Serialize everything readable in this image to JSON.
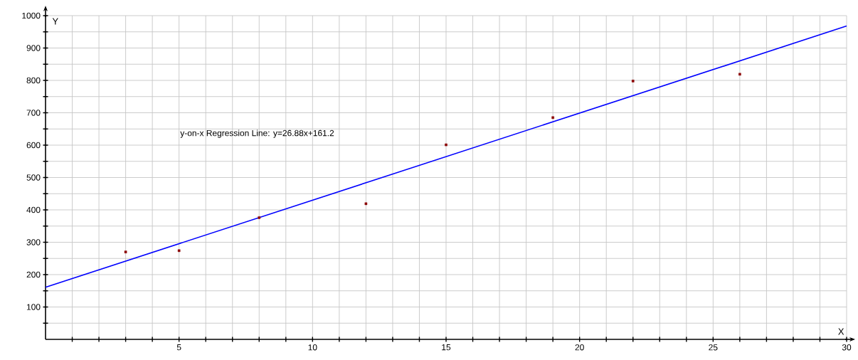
{
  "chart_data": {
    "type": "scatter",
    "xlabel": "X",
    "ylabel": "Y",
    "annotations": [
      "y-on-x Regression Line: y=26.88x+161.2"
    ],
    "xlim": [
      0,
      30
    ],
    "ylim": [
      0,
      1000
    ],
    "grid": true,
    "xticks": [
      {
        "value": 1,
        "label": null
      },
      {
        "value": 2,
        "label": null
      },
      {
        "value": 3,
        "label": null
      },
      {
        "value": 4,
        "label": null
      },
      5,
      {
        "value": 6,
        "label": null
      },
      {
        "value": 7,
        "label": null
      },
      {
        "value": 8,
        "label": null
      },
      {
        "value": 9,
        "label": null
      },
      10,
      {
        "value": 11,
        "label": null
      },
      {
        "value": 12,
        "label": null
      },
      {
        "value": 13,
        "label": null
      },
      {
        "value": 14,
        "label": null
      },
      15,
      {
        "value": 16,
        "label": null
      },
      {
        "value": 17,
        "label": null
      },
      {
        "value": 18,
        "label": null
      },
      {
        "value": 19,
        "label": null
      },
      20,
      {
        "value": 21,
        "label": null
      },
      {
        "value": 22,
        "label": null
      },
      {
        "value": 23,
        "label": null
      },
      {
        "value": 24,
        "label": null
      },
      25,
      {
        "value": 26,
        "label": null
      },
      {
        "value": 27,
        "label": null
      },
      {
        "value": 28,
        "label": null
      },
      {
        "value": 29,
        "label": null
      },
      30
    ],
    "yticks": [
      {
        "value": 50,
        "label": null
      },
      100,
      {
        "value": 150,
        "label": null
      },
      200,
      {
        "value": 250,
        "label": null
      },
      300,
      {
        "value": 350,
        "label": null
      },
      400,
      {
        "value": 450,
        "label": null
      },
      500,
      {
        "value": 550,
        "label": null
      },
      600,
      {
        "value": 650,
        "label": null
      },
      700,
      {
        "value": 750,
        "label": null
      },
      800,
      {
        "value": 850,
        "label": null
      },
      900,
      {
        "value": 950,
        "label": null
      },
      1000
    ],
    "series": [
      {
        "type": "line",
        "color": "#0000ff",
        "x": [
          0,
          30
        ],
        "values": [
          161,
          968
        ]
      },
      {
        "marker": "square",
        "color": "#8b0000",
        "x": [
          3,
          5,
          8,
          12,
          15,
          19,
          22,
          26
        ],
        "values": [
          270,
          274,
          376,
          419,
          601,
          685,
          798,
          819
        ]
      }
    ]
  }
}
